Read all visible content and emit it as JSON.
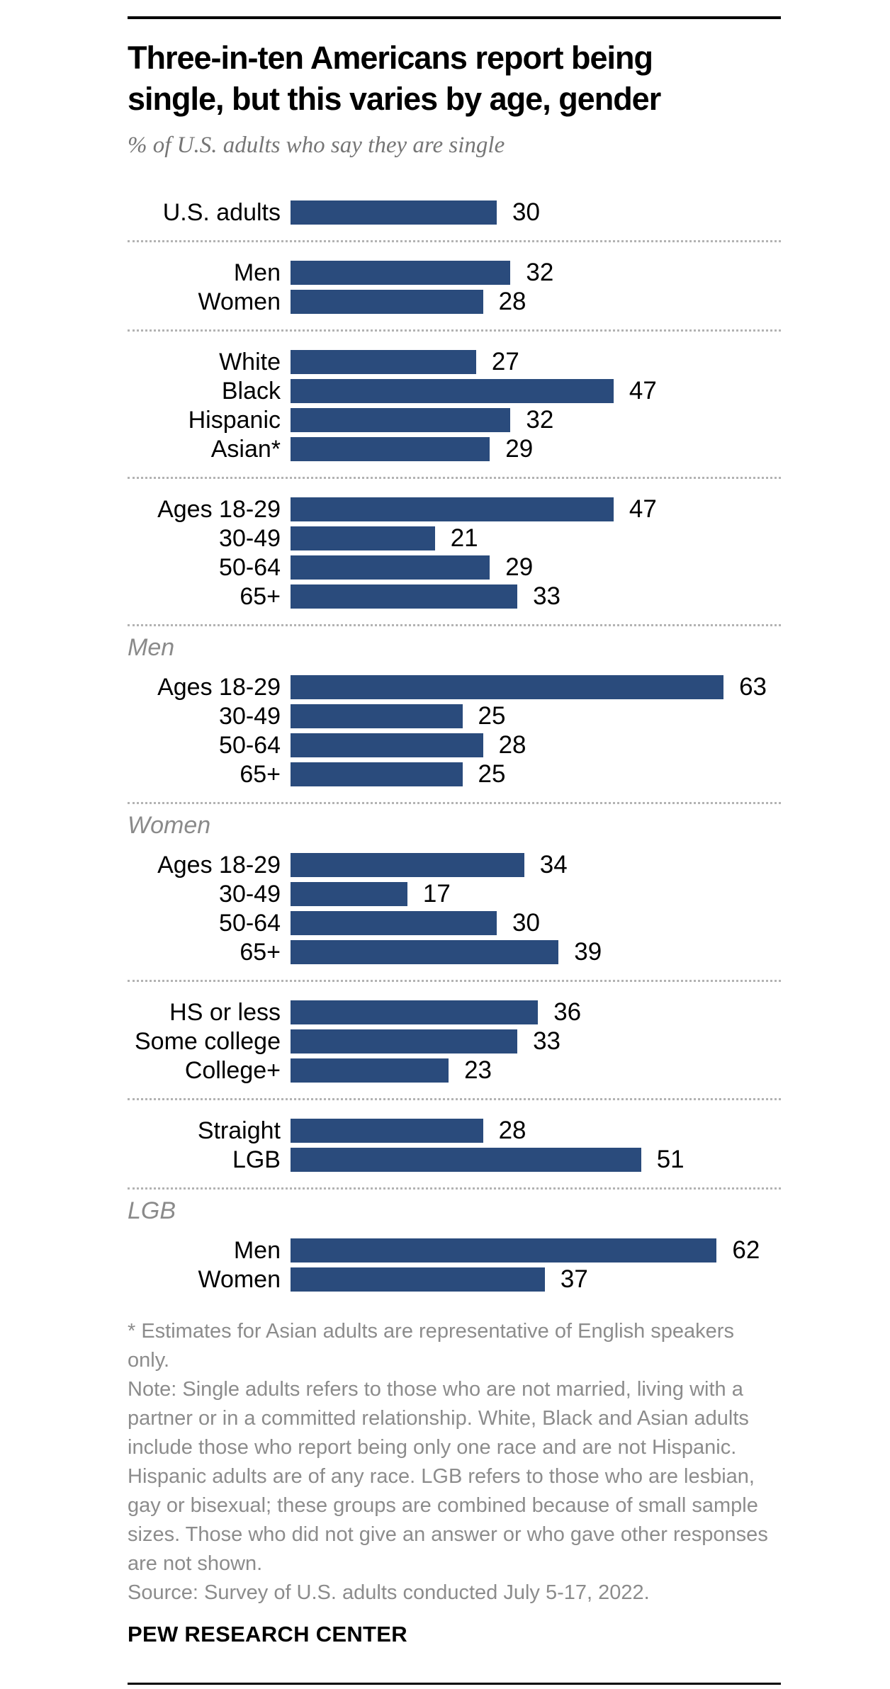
{
  "header": {
    "title_lines": [
      "Three-in-ten Americans report being",
      "single, but this varies by age, gender"
    ],
    "subtitle": "% of U.S. adults who say they are single"
  },
  "chart_data": {
    "type": "bar",
    "orientation": "horizontal",
    "unit": "percent",
    "title": "Three-in-ten Americans report being single, but this varies by age, gender",
    "subtitle": "% of U.S. adults who say they are single",
    "bar_color": "#2A4B7C",
    "value_axis_max": 70,
    "grid": false,
    "legend": false,
    "sections": [
      {
        "header": null,
        "rows": [
          {
            "label": "U.S. adults",
            "value": 30
          }
        ]
      },
      {
        "header": null,
        "rows": [
          {
            "label": "Men",
            "value": 32
          },
          {
            "label": "Women",
            "value": 28
          }
        ]
      },
      {
        "header": null,
        "rows": [
          {
            "label": "White",
            "value": 27
          },
          {
            "label": "Black",
            "value": 47
          },
          {
            "label": "Hispanic",
            "value": 32
          },
          {
            "label": "Asian*",
            "value": 29
          }
        ]
      },
      {
        "header": null,
        "rows": [
          {
            "label": "Ages 18-29",
            "value": 47
          },
          {
            "label": "30-49",
            "value": 21
          },
          {
            "label": "50-64",
            "value": 29
          },
          {
            "label": "65+",
            "value": 33
          }
        ]
      },
      {
        "header": "Men",
        "rows": [
          {
            "label": "Ages 18-29",
            "value": 63
          },
          {
            "label": "30-49",
            "value": 25
          },
          {
            "label": "50-64",
            "value": 28
          },
          {
            "label": "65+",
            "value": 25
          }
        ]
      },
      {
        "header": "Women",
        "rows": [
          {
            "label": "Ages 18-29",
            "value": 34
          },
          {
            "label": "30-49",
            "value": 17
          },
          {
            "label": "50-64",
            "value": 30
          },
          {
            "label": "65+",
            "value": 39
          }
        ]
      },
      {
        "header": null,
        "rows": [
          {
            "label": "HS or less",
            "value": 36
          },
          {
            "label": "Some college",
            "value": 33
          },
          {
            "label": "College+",
            "value": 23
          }
        ]
      },
      {
        "header": null,
        "rows": [
          {
            "label": "Straight",
            "value": 28
          },
          {
            "label": "LGB",
            "value": 51
          }
        ]
      },
      {
        "header": "LGB",
        "rows": [
          {
            "label": "Men",
            "value": 62
          },
          {
            "label": "Women",
            "value": 37
          }
        ]
      }
    ]
  },
  "footnotes": {
    "asterisk": "* Estimates for Asian adults are representative of English speakers only.",
    "note": "Note: Single adults refers to those who are not married, living with a partner or in a committed relationship. White, Black and Asian adults include those who report being only one race and are not Hispanic. Hispanic adults are of any race. LGB refers to those who are lesbian, gay or bisexual; these groups are combined because of small sample sizes. Those who did not give an answer or who gave other responses are not shown.",
    "source": "Source: Survey of U.S. adults conducted July 5-17, 2022."
  },
  "footer": {
    "brand": "PEW RESEARCH CENTER"
  }
}
